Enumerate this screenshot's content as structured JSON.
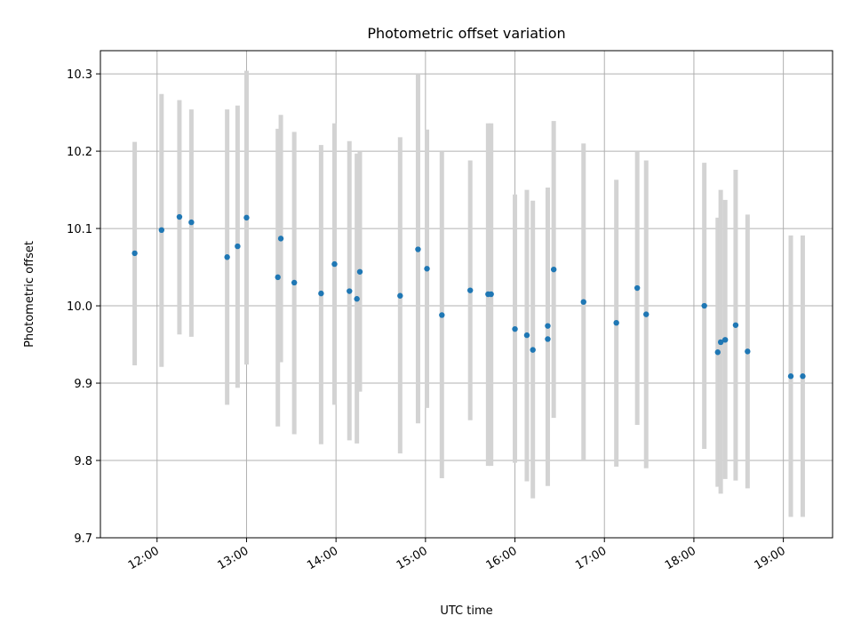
{
  "chart_data": {
    "type": "scatter",
    "title": "Photometric offset variation",
    "xlabel": "UTC time",
    "ylabel": "Photometric offset",
    "ylim": [
      9.7,
      10.33
    ],
    "xlim": [
      "11:22",
      "19:33"
    ],
    "x_tick_labels": [
      "12:00",
      "13:00",
      "14:00",
      "15:00",
      "16:00",
      "17:00",
      "18:00",
      "19:00"
    ],
    "y_tick_labels": [
      "9.7",
      "9.8",
      "9.9",
      "10.0",
      "10.1",
      "10.2",
      "10.3"
    ],
    "y_ticks": [
      9.7,
      9.8,
      9.9,
      10.0,
      10.1,
      10.2,
      10.3
    ],
    "grid": true,
    "point_color": "#1f77b4",
    "errorbar_color": "#d3d3d3",
    "series": [
      {
        "x": [
          "11:45",
          "12:03",
          "12:15",
          "12:23",
          "12:47",
          "12:54",
          "13:00",
          "13:21",
          "13:23",
          "13:32",
          "13:50",
          "13:59",
          "14:09",
          "14:14",
          "14:16",
          "14:43",
          "14:55",
          "15:01",
          "15:11",
          "15:30",
          "15:42",
          "15:44",
          "16:00",
          "16:08",
          "16:12",
          "16:22",
          "16:22",
          "16:26",
          "16:46",
          "17:08",
          "17:22",
          "17:28",
          "18:07",
          "18:16",
          "18:18",
          "18:21",
          "18:28",
          "18:36",
          "19:05",
          "19:13"
        ],
        "y": [
          10.068,
          10.098,
          10.115,
          10.108,
          10.063,
          10.077,
          10.114,
          10.037,
          10.087,
          10.03,
          10.016,
          10.054,
          10.019,
          10.009,
          10.044,
          10.013,
          10.073,
          10.048,
          9.988,
          10.02,
          10.015,
          10.015,
          9.97,
          9.962,
          9.943,
          9.974,
          9.957,
          10.047,
          10.005,
          9.978,
          10.023,
          9.989,
          10.0,
          9.94,
          9.953,
          9.956,
          9.975,
          9.941,
          9.909,
          9.909
        ],
        "yerr_low": [
          9.923,
          9.921,
          9.963,
          9.96,
          9.872,
          9.894,
          9.924,
          9.844,
          9.927,
          9.834,
          9.821,
          9.872,
          9.826,
          9.822,
          9.889,
          9.809,
          9.848,
          9.868,
          9.777,
          9.852,
          9.793,
          9.793,
          9.797,
          9.773,
          9.751,
          9.796,
          9.767,
          9.855,
          9.8,
          9.792,
          9.846,
          9.79,
          9.815,
          9.766,
          9.757,
          9.776,
          9.774,
          9.764,
          9.727,
          9.727
        ],
        "yerr_high": [
          10.212,
          10.274,
          10.266,
          10.254,
          10.254,
          10.259,
          10.304,
          10.229,
          10.247,
          10.225,
          10.208,
          10.236,
          10.213,
          10.197,
          10.199,
          10.218,
          10.3,
          10.228,
          10.2,
          10.188,
          10.236,
          10.236,
          10.144,
          10.15,
          10.136,
          10.153,
          10.148,
          10.239,
          10.21,
          10.163,
          10.199,
          10.188,
          10.185,
          10.114,
          10.15,
          10.137,
          10.176,
          10.118,
          10.091,
          10.091
        ]
      }
    ]
  }
}
